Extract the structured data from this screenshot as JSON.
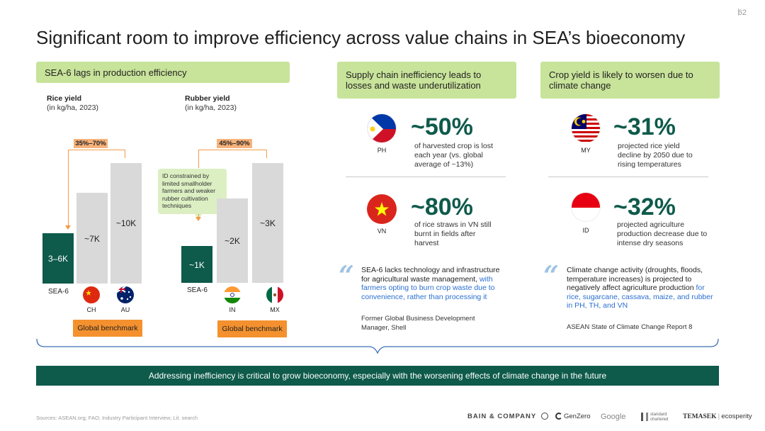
{
  "page_number": "62",
  "title": "Significant room to improve efficiency across value chains in SEA’s bioeconomy",
  "left_panel": {
    "header": "SEA-6 lags in production efficiency",
    "rice": {
      "label": "Rice yield",
      "sub": "(in kg/ha, 2023)",
      "range": "35%–70%",
      "bars": [
        {
          "label": "SEA-6",
          "value": "3–6K",
          "height": 0.3
        },
        {
          "label": "CH",
          "value": "~7K",
          "height": 0.59
        },
        {
          "label": "AU",
          "value": "~10K",
          "height": 0.84
        }
      ],
      "benchmark": "Global benchmark"
    },
    "rubber": {
      "label": "Rubber yield",
      "sub": "(in kg/ha, 2023)",
      "range": "45%–90%",
      "tooltip": "ID constrained by limited smallholder farmers and weaker rubber cultivation techniques",
      "bars": [
        {
          "label": "SEA-6",
          "value": "~1K",
          "height": 0.22
        },
        {
          "label": "IN",
          "value": "~2K",
          "height": 0.52
        },
        {
          "label": "MX",
          "value": "~3K",
          "height": 0.84
        }
      ],
      "benchmark": "Global benchmark"
    }
  },
  "middle_panel": {
    "header": "Supply chain inefficiency leads to losses and waste underutilization",
    "stats": [
      {
        "country": "PH",
        "pct": "~50%",
        "desc": "of harvested crop is lost each year (vs. global average of ~13%)"
      },
      {
        "country": "VN",
        "pct": "~80%",
        "desc": "of rice straws in VN still burnt in fields after harvest"
      }
    ],
    "quote": {
      "text_plain": "SEA-6 lacks technology and infrastructure for agricultural waste management, ",
      "text_highlight": "with farmers opting to burn crop waste due to convenience, rather than processing it",
      "source": "Former Global Business Development Manager, Shell"
    }
  },
  "right_panel": {
    "header": "Crop yield is likely to worsen due to climate change",
    "stats": [
      {
        "country": "MY",
        "pct": "~31%",
        "desc": "projected rice yield decline by 2050 due to rising temperatures"
      },
      {
        "country": "ID",
        "pct": "~32%",
        "desc": "projected agriculture production decrease due to intense dry seasons"
      }
    ],
    "quote": {
      "text_plain": "Climate change activity (droughts, floods, temperature increases) is projected to negatively affect agriculture production ",
      "text_highlight": "for rice, sugarcane, cassava, maize, and rubber in PH, TH, and VN",
      "source": "ASEAN State of Climate Change Report 8"
    }
  },
  "banner": "Addressing inefficiency is critical to grow bioeconomy, especially with the worsening effects of climate change in the future",
  "sources": "Sources: ASEAN.org; FAO; Industry Participant Interview; Lit. search",
  "logos": {
    "bain": "BAIN & COMPANY",
    "genzero": "GenZero",
    "google": "Google",
    "sc": "standard chartered",
    "temasek": "TEMASEK",
    "ecosperity": "ecosperity"
  },
  "colors": {
    "dark_green": "#0e5a4b",
    "light_green": "#c8e39a",
    "orange": "#f4912e",
    "highlight_blue": "#2a6fd1"
  }
}
